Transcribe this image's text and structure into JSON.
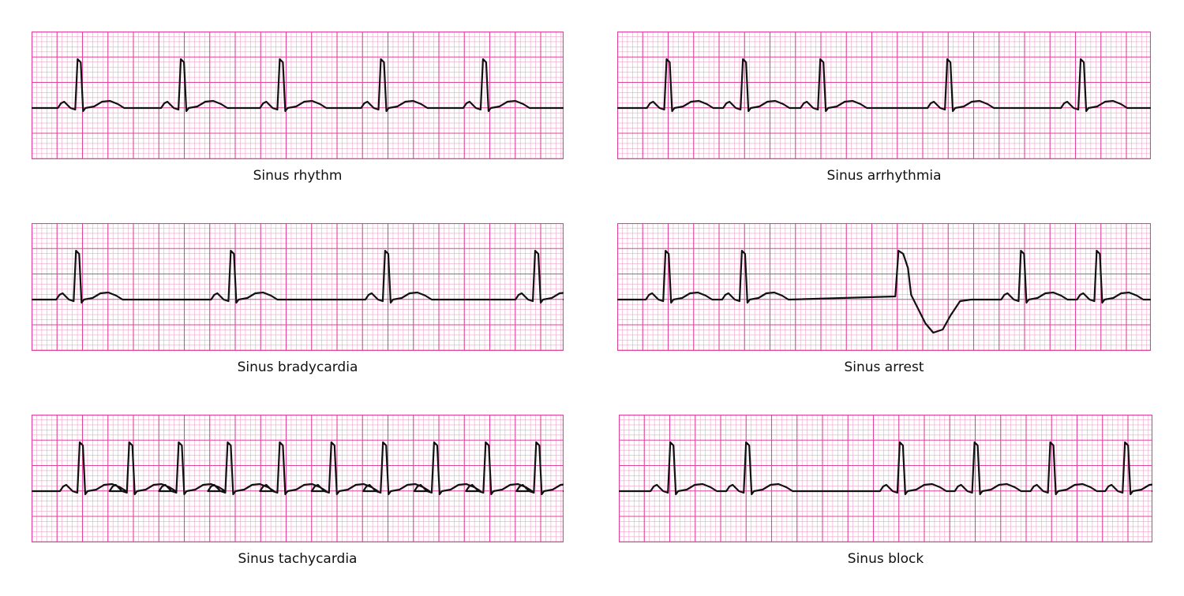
{
  "colors": {
    "grid": "#e0449a",
    "grid_minor": "#f0a4c8",
    "trace": "#111111",
    "background": "#ffffff"
  },
  "strips": [
    {
      "label": "Sinus rhythm",
      "beats": [
        {
          "x": 0.088,
          "type": "normal"
        },
        {
          "x": 0.282,
          "type": "normal"
        },
        {
          "x": 0.468,
          "type": "normal"
        },
        {
          "x": 0.658,
          "type": "normal"
        },
        {
          "x": 0.85,
          "type": "normal"
        }
      ]
    },
    {
      "label": "Sinus arrhythmia",
      "beats": [
        {
          "x": 0.094,
          "type": "normal"
        },
        {
          "x": 0.237,
          "type": "normal"
        },
        {
          "x": 0.382,
          "type": "normal"
        },
        {
          "x": 0.62,
          "type": "normal"
        },
        {
          "x": 0.87,
          "type": "normal"
        }
      ]
    },
    {
      "label": "Sinus bradycardia",
      "beats": [
        {
          "x": 0.085,
          "type": "normal"
        },
        {
          "x": 0.376,
          "type": "normal"
        },
        {
          "x": 0.666,
          "type": "normal"
        },
        {
          "x": 0.948,
          "type": "normal"
        }
      ]
    },
    {
      "label": "Sinus arrest",
      "beats": [
        {
          "x": 0.092,
          "type": "normal"
        },
        {
          "x": 0.235,
          "type": "normal"
        },
        {
          "x": 0.53,
          "type": "escape"
        },
        {
          "x": 0.758,
          "type": "normal"
        },
        {
          "x": 0.9,
          "type": "normal"
        }
      ]
    },
    {
      "label": "Sinus tachycardia",
      "beats": [
        {
          "x": 0.092,
          "type": "normal"
        },
        {
          "x": 0.185,
          "type": "normal"
        },
        {
          "x": 0.278,
          "type": "normal"
        },
        {
          "x": 0.37,
          "type": "normal"
        },
        {
          "x": 0.468,
          "type": "normal"
        },
        {
          "x": 0.565,
          "type": "normal"
        },
        {
          "x": 0.662,
          "type": "normal"
        },
        {
          "x": 0.758,
          "type": "normal"
        },
        {
          "x": 0.855,
          "type": "normal"
        },
        {
          "x": 0.95,
          "type": "normal"
        }
      ]
    },
    {
      "label": "Sinus block",
      "beats": [
        {
          "x": 0.098,
          "type": "normal"
        },
        {
          "x": 0.24,
          "type": "normal"
        },
        {
          "x": 0.528,
          "type": "normal"
        },
        {
          "x": 0.668,
          "type": "normal"
        },
        {
          "x": 0.81,
          "type": "normal"
        },
        {
          "x": 0.95,
          "type": "normal"
        }
      ]
    }
  ]
}
